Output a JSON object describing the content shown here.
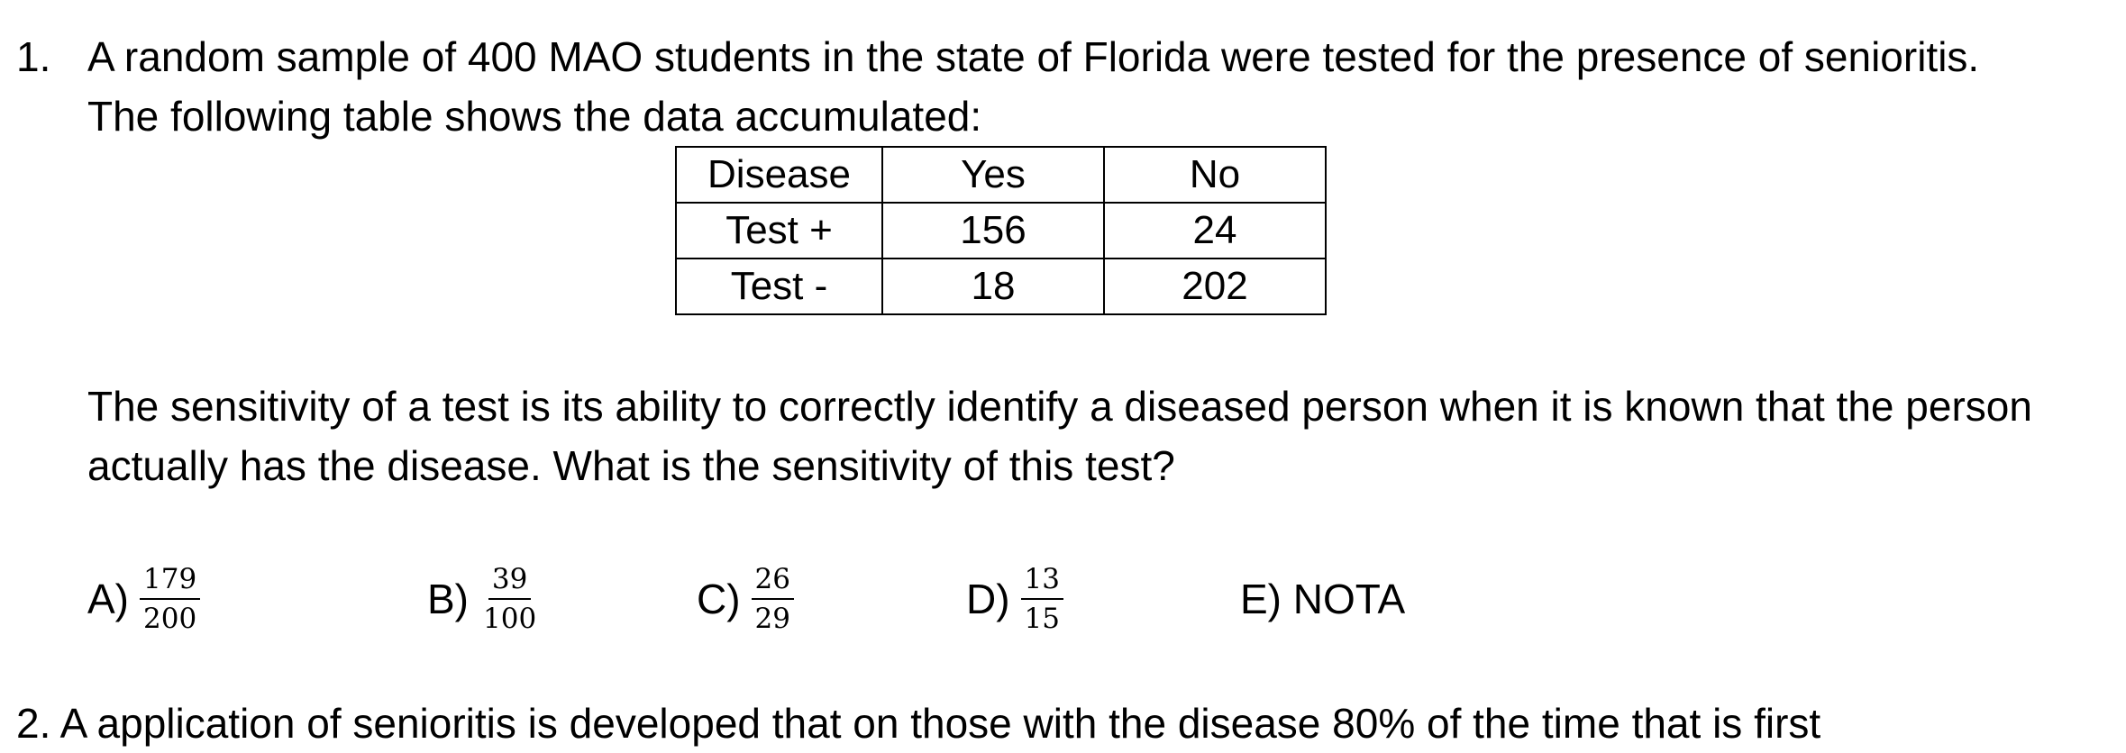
{
  "question": {
    "number": "1.",
    "intro": "A random sample of 400 MAO students in the state of Florida were tested for the presence of senioritis. The following table shows the data accumulated:",
    "table": {
      "header": [
        "Disease",
        "Yes",
        "No"
      ],
      "rows": [
        [
          "Test +",
          "156",
          "24"
        ],
        [
          "Test -",
          "18",
          "202"
        ]
      ]
    },
    "body": "The sensitivity of a test is its ability to correctly identify a diseased person when it is known that the person actually has the disease.  What is the sensitivity of this test?",
    "choices": [
      {
        "letter": "A)",
        "numerator": "179",
        "denominator": "200"
      },
      {
        "letter": "B)",
        "numerator": "39",
        "denominator": "100"
      },
      {
        "letter": "C)",
        "numerator": "26",
        "denominator": "29"
      },
      {
        "letter": "D)",
        "numerator": "13",
        "denominator": "15"
      },
      {
        "letter": "E) NOTA"
      }
    ]
  },
  "next_question": {
    "partial_text": "2.    A   application of     senioritis is developed that     on those with the disease 80% of the time that is first"
  }
}
